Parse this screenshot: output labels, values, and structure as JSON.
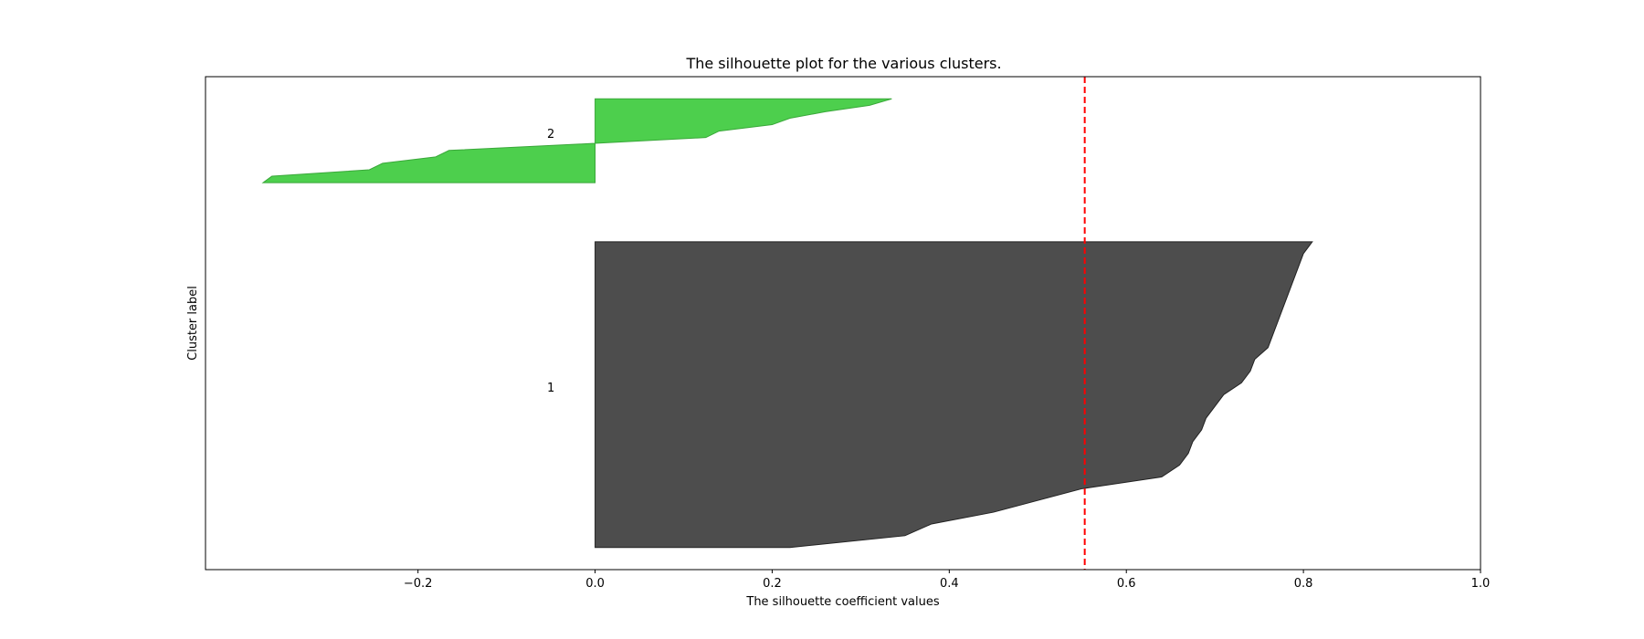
{
  "chart_data": {
    "type": "area",
    "title": "The silhouette plot for the various clusters.",
    "xlabel": "The silhouette coefficient values",
    "ylabel": "Cluster label",
    "xlim": [
      -0.44,
      1.0
    ],
    "ylim": [
      0,
      1.0
    ],
    "x_ticks": [
      -0.2,
      0.0,
      0.2,
      0.4,
      0.6,
      0.8,
      1.0
    ],
    "x_tick_labels": [
      "−0.2",
      "0.0",
      "0.2",
      "0.4",
      "0.6",
      "0.8",
      "1.0"
    ],
    "average_silhouette": 0.553,
    "average_line_color": "#ff0000",
    "grid": false,
    "clusters": [
      {
        "label": "1",
        "color": "#4d4d4d",
        "y_bottom": 0.045,
        "y_top": 0.665,
        "label_x": -0.05,
        "label_y": 0.37,
        "values_bottom_to_top": [
          0.22,
          0.35,
          0.38,
          0.45,
          0.5,
          0.55,
          0.64,
          0.66,
          0.67,
          0.675,
          0.685,
          0.69,
          0.7,
          0.71,
          0.73,
          0.74,
          0.745,
          0.76,
          0.765,
          0.77,
          0.775,
          0.78,
          0.785,
          0.79,
          0.795,
          0.8,
          0.81
        ]
      },
      {
        "label": "2",
        "color": "#4dcf4d",
        "y_bottom": 0.785,
        "y_top": 0.955,
        "label_x": -0.05,
        "label_y": 0.885,
        "values_bottom_to_top": [
          -0.375,
          -0.365,
          -0.255,
          -0.24,
          -0.18,
          -0.165,
          -0.015,
          0.125,
          0.14,
          0.2,
          0.22,
          0.26,
          0.31,
          0.335
        ]
      }
    ]
  }
}
